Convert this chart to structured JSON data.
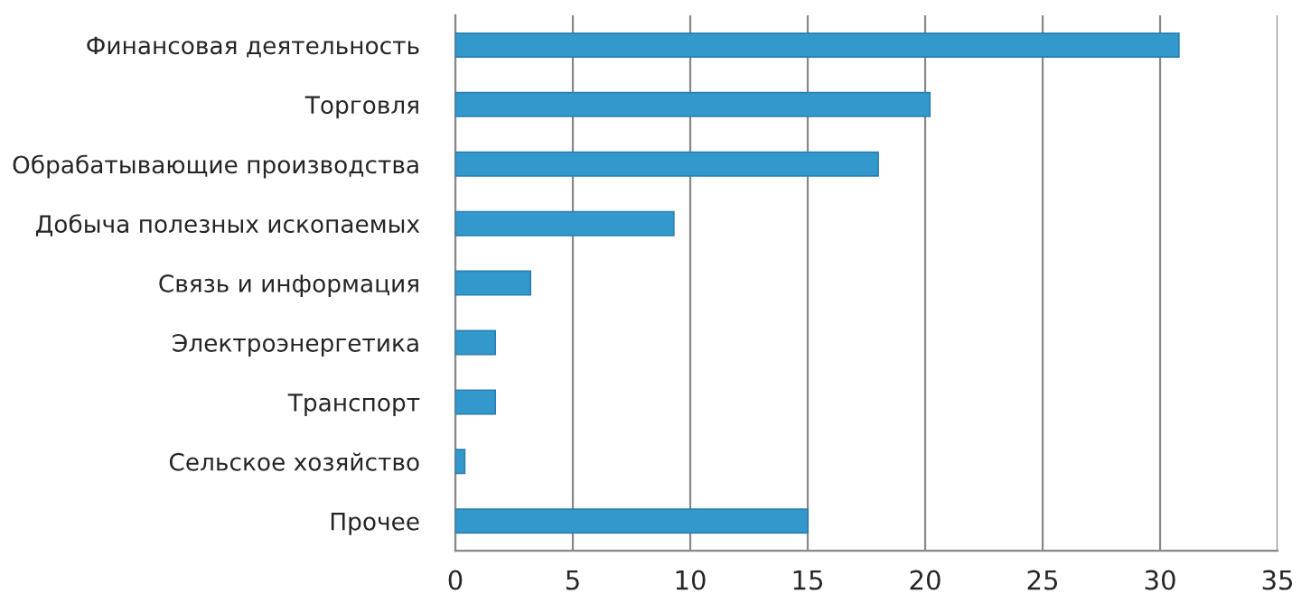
{
  "chart_data": {
    "type": "bar",
    "orientation": "horizontal",
    "categories": [
      "Финансовая деятельность",
      "Торговля",
      "Обрабатывающие производства",
      "Добыча полезных ископаемых",
      "Связь и информация",
      "Электроэнергетика",
      "Транспорт",
      "Сельское хозяйство",
      "Прочее"
    ],
    "values": [
      30.8,
      20.2,
      18.0,
      9.3,
      3.2,
      1.7,
      1.7,
      0.4,
      15.0
    ],
    "color": "#3399cc",
    "xlim": [
      0,
      35
    ],
    "xticks": [
      0,
      5,
      10,
      15,
      20,
      25,
      30,
      35
    ],
    "grid": "x"
  }
}
